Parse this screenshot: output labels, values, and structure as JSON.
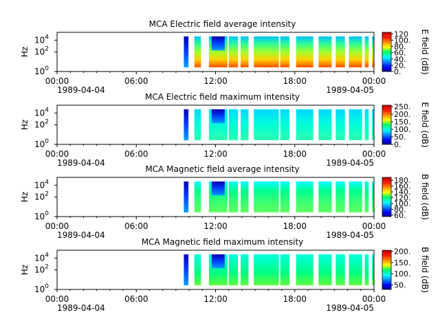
{
  "chart_data": [
    {
      "type": "heatmap",
      "title": "MCA  Electric field average intensity",
      "ylabel": "Hz",
      "yticks": [
        {
          "base": "10",
          "exp": "0"
        },
        {
          "base": "10",
          "exp": "2"
        },
        {
          "base": "10",
          "exp": "4"
        }
      ],
      "xtick_labels": [
        "00:00",
        "06:00",
        "12:00",
        "18:00",
        "00:00"
      ],
      "x_start_date": "1989-04-04",
      "x_end_date": "1989-04-05",
      "colorbar_label": "E field (dB)",
      "colorbar_ticks": [
        "0.",
        "20.",
        "40.",
        "60.",
        "80.",
        "100.",
        "120"
      ],
      "colorbar_range": [
        0,
        125
      ],
      "data_segments": [
        [
          9.6,
          9.95
        ],
        [
          10.4,
          10.9
        ],
        [
          11.5,
          12.9
        ],
        [
          13.0,
          13.7
        ],
        [
          13.9,
          14.5
        ],
        [
          14.9,
          16.8
        ],
        [
          16.9,
          17.6
        ],
        [
          18.1,
          19.4
        ],
        [
          19.8,
          20.8
        ],
        [
          21.1,
          21.8
        ],
        [
          22.1,
          23.1
        ],
        [
          23.3,
          23.6
        ],
        [
          23.85,
          24.0
        ]
      ],
      "palette": "avg-e"
    },
    {
      "type": "heatmap",
      "title": "MCA  Electric field maximum intensity",
      "ylabel": "Hz",
      "yticks": [
        {
          "base": "10",
          "exp": "0"
        },
        {
          "base": "10",
          "exp": "2"
        },
        {
          "base": "10",
          "exp": "4"
        }
      ],
      "xtick_labels": [
        "00:00",
        "06:00",
        "12:00",
        "18:00",
        "00:00"
      ],
      "x_start_date": "1989-04-04",
      "x_end_date": "1989-04-05",
      "colorbar_label": "E field (dB)",
      "colorbar_ticks": [
        "0.",
        "50.",
        "100.",
        "150.",
        "200.",
        "250."
      ],
      "colorbar_range": [
        0,
        260
      ],
      "data_segments": [
        [
          9.6,
          9.95
        ],
        [
          10.4,
          10.9
        ],
        [
          11.5,
          12.9
        ],
        [
          13.0,
          13.7
        ],
        [
          13.9,
          14.5
        ],
        [
          14.9,
          16.8
        ],
        [
          16.9,
          17.6
        ],
        [
          18.1,
          19.4
        ],
        [
          19.8,
          20.8
        ],
        [
          21.1,
          21.8
        ],
        [
          22.1,
          23.1
        ],
        [
          23.3,
          23.6
        ],
        [
          23.85,
          24.0
        ]
      ],
      "palette": "max-e"
    },
    {
      "type": "heatmap",
      "title": "MCA  Magnetic field average intensity",
      "ylabel": "Hz",
      "yticks": [
        {
          "base": "10",
          "exp": "0"
        },
        {
          "base": "10",
          "exp": "2"
        },
        {
          "base": "10",
          "exp": "4"
        }
      ],
      "xtick_labels": [
        "00:00",
        "06:00",
        "12:00",
        "18:00",
        "00:00"
      ],
      "x_start_date": "1989-04-04",
      "x_end_date": "1989-04-05",
      "colorbar_label": "B field (dB)",
      "colorbar_ticks": [
        "60.",
        "80.",
        "100.",
        "120.",
        "140.",
        "160.",
        "180."
      ],
      "colorbar_range": [
        55,
        190
      ],
      "data_segments": [
        [
          9.6,
          9.95
        ],
        [
          10.4,
          10.9
        ],
        [
          11.5,
          12.9
        ],
        [
          13.0,
          13.7
        ],
        [
          13.9,
          14.5
        ],
        [
          14.9,
          16.8
        ],
        [
          16.9,
          17.6
        ],
        [
          18.1,
          19.4
        ],
        [
          19.8,
          20.8
        ],
        [
          21.1,
          21.8
        ],
        [
          22.1,
          23.1
        ],
        [
          23.3,
          23.6
        ],
        [
          23.85,
          24.0
        ]
      ],
      "palette": "avg-b"
    },
    {
      "type": "heatmap",
      "title": "MCA  Magnetic field maximum intensity",
      "ylabel": "Hz",
      "yticks": [
        {
          "base": "10",
          "exp": "0"
        },
        {
          "base": "10",
          "exp": "2"
        },
        {
          "base": "10",
          "exp": "4"
        }
      ],
      "xtick_labels": [
        "00:00",
        "06:00",
        "12:00",
        "18:00",
        "00:00"
      ],
      "x_start_date": "1989-04-04",
      "x_end_date": "1989-04-05",
      "colorbar_label": "B field (dB)",
      "colorbar_ticks": [
        "50.",
        "100.",
        "150.",
        "200."
      ],
      "colorbar_range": [
        30,
        205
      ],
      "data_segments": [
        [
          9.6,
          9.95
        ],
        [
          10.4,
          10.9
        ],
        [
          11.5,
          12.9
        ],
        [
          13.0,
          13.7
        ],
        [
          13.9,
          14.5
        ],
        [
          14.9,
          16.8
        ],
        [
          16.9,
          17.6
        ],
        [
          18.1,
          19.4
        ],
        [
          19.8,
          20.8
        ],
        [
          21.1,
          21.8
        ],
        [
          22.1,
          23.1
        ],
        [
          23.3,
          23.6
        ],
        [
          23.85,
          24.0
        ]
      ],
      "palette": "max-b"
    }
  ]
}
